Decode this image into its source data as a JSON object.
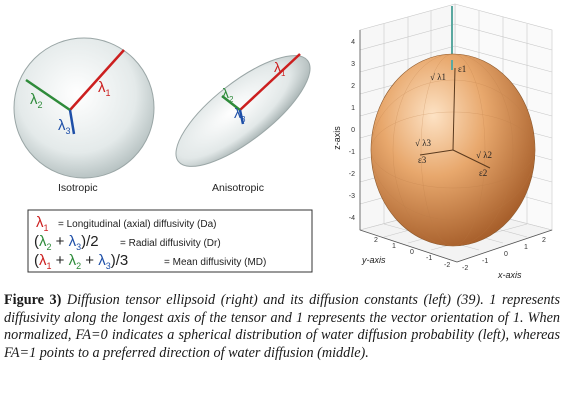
{
  "left_panel": {
    "sphere_label": "Isotropic",
    "ellipsoid_label": "Anisotropic",
    "sphere_axes": {
      "l1": "λ1",
      "l2": "λ2",
      "l3": "λ3"
    },
    "ellipsoid_axes": {
      "l1": "λ1",
      "l2": "λ2",
      "l3": "λ3"
    },
    "legend": [
      {
        "symbol": "λ₁",
        "text": "= Longitudinal (axial) diffusivity (Da)"
      },
      {
        "symbol": "(λ₂ + λ₃)/2",
        "text": "= Radial diffusivity (Dr)"
      },
      {
        "symbol": "(λ₁ + λ₂ + λ₃)/3",
        "text": "= Mean diffusivity (MD)"
      }
    ]
  },
  "right_panel": {
    "z_label": "z-axis",
    "y_label": "y-axis",
    "x_label": "x-axis",
    "z_ticks": [
      "4",
      "3",
      "2",
      "1",
      "0",
      "-1",
      "-2",
      "-3",
      "-4"
    ],
    "y_ticks": [
      "2",
      "1",
      "0",
      "-1",
      "-2"
    ],
    "x_ticks": [
      "-2",
      "-1",
      "0",
      "1",
      "2"
    ],
    "annotations": {
      "e1": "ε1",
      "sl1": "√ λ1",
      "e3": "ε3",
      "sl3": "√ λ3",
      "sl2": "√ λ2",
      "e2": "ε2"
    }
  },
  "caption": {
    "lead": "Figure 3)",
    "body": "Diffusion tensor ellipsoid (right) and its diffusion constants (left) (39). 1 represents diffusivity along the longest axis of the tensor and 1 represents the vector orientation of 1. When normalized, FA=0 indicates a spherical distribution of water diffusion probability (left), whereas FA=1 points to a preferred direction of water diffusion (middle)."
  },
  "colors": {
    "lambda1": "#cc1f1f",
    "lambda2": "#2e8b3a",
    "lambda3": "#1e4fa8",
    "ellipsoid": "#e0a26a"
  }
}
